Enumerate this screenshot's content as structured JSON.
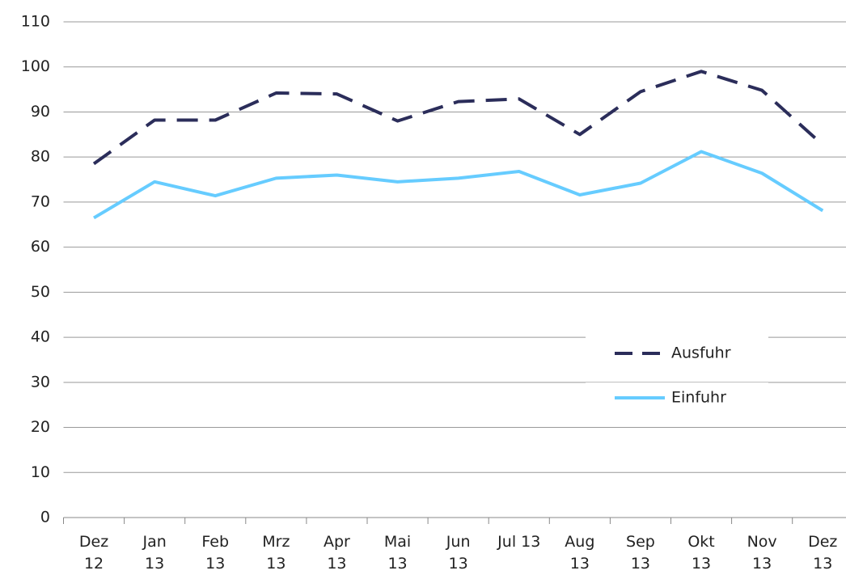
{
  "chart_data": {
    "type": "line",
    "categories": [
      "Dez 12",
      "Jan 13",
      "Feb 13",
      "Mrz 13",
      "Apr 13",
      "Mai 13",
      "Jun 13",
      "Jul 13",
      "Aug 13",
      "Sep 13",
      "Okt 13",
      "Nov 13",
      "Dez 13"
    ],
    "series": [
      {
        "name": "Ausfuhr",
        "color": "#2b2d5a",
        "dash": true,
        "values": [
          78.5,
          88.2,
          88.2,
          94.2,
          94.0,
          88.0,
          92.3,
          92.9,
          85.0,
          94.5,
          99.0,
          94.8,
          82.7
        ]
      },
      {
        "name": "Einfuhr",
        "color": "#66ccff",
        "dash": false,
        "values": [
          66.5,
          74.5,
          71.4,
          75.3,
          76.0,
          74.5,
          75.3,
          76.8,
          71.6,
          74.2,
          81.2,
          76.4,
          68.1
        ]
      }
    ],
    "ylim": [
      0,
      110
    ],
    "yticks": [
      0,
      10,
      20,
      30,
      40,
      50,
      60,
      70,
      80,
      90,
      100,
      110
    ],
    "grid": true,
    "legend": "right"
  }
}
